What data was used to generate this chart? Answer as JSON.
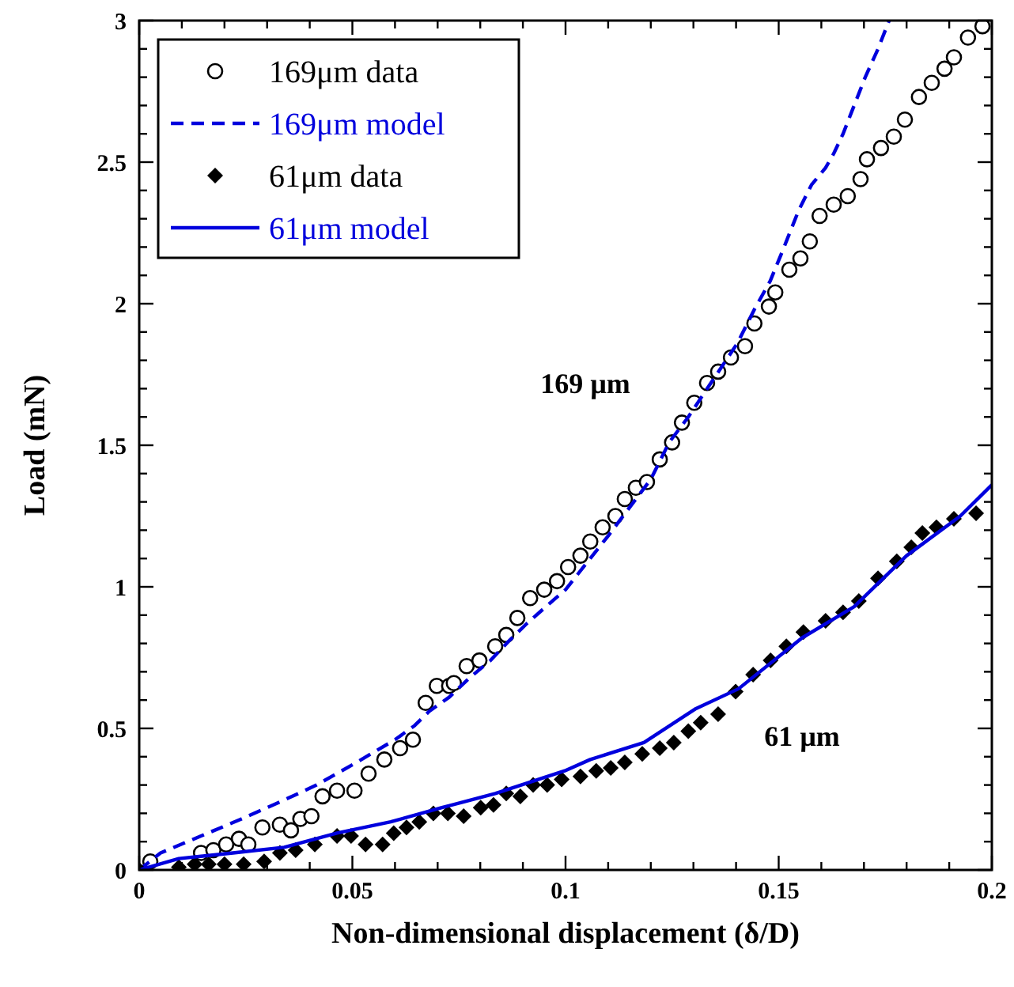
{
  "chart_data": {
    "type": "scatter",
    "xlabel": "Non-dimensional displacement (δ/D)",
    "ylabel": "Load (mN)",
    "xlim": [
      0,
      0.2
    ],
    "ylim": [
      0,
      3
    ],
    "xticks": [
      0,
      {
        "value": 0.01,
        "label": null
      },
      {
        "value": 0.02,
        "label": null
      },
      {
        "value": 0.03,
        "label": null
      },
      {
        "value": 0.04,
        "label": null
      },
      0.05,
      {
        "value": 0.06,
        "label": null
      },
      {
        "value": 0.07,
        "label": null
      },
      {
        "value": 0.08,
        "label": null
      },
      {
        "value": 0.09,
        "label": null
      },
      0.1,
      {
        "value": 0.11,
        "label": null
      },
      {
        "value": 0.12,
        "label": null
      },
      {
        "value": 0.13,
        "label": null
      },
      {
        "value": 0.14,
        "label": null
      },
      0.15,
      {
        "value": 0.16,
        "label": null
      },
      {
        "value": 0.17,
        "label": null
      },
      {
        "value": 0.18,
        "label": null
      },
      {
        "value": 0.19,
        "label": null
      },
      0.2
    ],
    "yticks": [
      0,
      {
        "value": 0.1,
        "label": null
      },
      {
        "value": 0.2,
        "label": null
      },
      {
        "value": 0.3,
        "label": null
      },
      {
        "value": 0.4,
        "label": null
      },
      0.5,
      {
        "value": 0.6,
        "label": null
      },
      {
        "value": 0.7,
        "label": null
      },
      {
        "value": 0.8,
        "label": null
      },
      {
        "value": 0.9,
        "label": null
      },
      1,
      {
        "value": 1.1,
        "label": null
      },
      {
        "value": 1.2,
        "label": null
      },
      {
        "value": 1.3,
        "label": null
      },
      {
        "value": 1.4,
        "label": null
      },
      1.5,
      {
        "value": 1.6,
        "label": null
      },
      {
        "value": 1.7,
        "label": null
      },
      {
        "value": 1.8,
        "label": null
      },
      {
        "value": 1.9,
        "label": null
      },
      2,
      {
        "value": 2.1,
        "label": null
      },
      {
        "value": 2.2,
        "label": null
      },
      {
        "value": 2.3,
        "label": null
      },
      {
        "value": 2.4,
        "label": null
      },
      2.5,
      {
        "value": 2.6,
        "label": null
      },
      {
        "value": 2.7,
        "label": null
      },
      {
        "value": 2.8,
        "label": null
      },
      {
        "value": 2.9,
        "label": null
      },
      3
    ],
    "grid": false,
    "legend": "top left",
    "annotations": [
      "169 µm",
      "61 µm"
    ],
    "series": [
      {
        "name": "169μm data",
        "marker": "circle",
        "color": "#000000",
        "x": [
          0.0026,
          0.0145,
          0.0174,
          0.0204,
          0.0234,
          0.0256,
          0.0289,
          0.033,
          0.0356,
          0.0378,
          0.0404,
          0.043,
          0.0464,
          0.0505,
          0.0538,
          0.0575,
          0.0612,
          0.0642,
          0.0672,
          0.0698,
          0.0727,
          0.0738,
          0.0768,
          0.0798,
          0.0835,
          0.0861,
          0.0887,
          0.0917,
          0.095,
          0.098,
          0.1006,
          0.1035,
          0.1058,
          0.1087,
          0.1117,
          0.1139,
          0.1165,
          0.1191,
          0.1221,
          0.125,
          0.1273,
          0.1302,
          0.1332,
          0.1358,
          0.1388,
          0.1421,
          0.1443,
          0.1477,
          0.1492,
          0.1525,
          0.1551,
          0.1573,
          0.1596,
          0.1629,
          0.1662,
          0.1692,
          0.1707,
          0.174,
          0.177,
          0.1796,
          0.1829,
          0.1859,
          0.1889,
          0.1911,
          0.1944,
          0.1978
        ],
        "values": [
          0.03,
          0.06,
          0.07,
          0.09,
          0.11,
          0.09,
          0.15,
          0.16,
          0.14,
          0.18,
          0.19,
          0.26,
          0.28,
          0.28,
          0.34,
          0.39,
          0.43,
          0.46,
          0.59,
          0.65,
          0.65,
          0.66,
          0.72,
          0.74,
          0.79,
          0.83,
          0.89,
          0.96,
          0.99,
          1.02,
          1.07,
          1.11,
          1.16,
          1.21,
          1.25,
          1.31,
          1.35,
          1.37,
          1.45,
          1.51,
          1.58,
          1.65,
          1.72,
          1.76,
          1.81,
          1.85,
          1.93,
          1.99,
          2.04,
          2.12,
          2.16,
          2.22,
          2.31,
          2.35,
          2.38,
          2.44,
          2.51,
          2.55,
          2.59,
          2.65,
          2.73,
          2.78,
          2.83,
          2.87,
          2.94,
          2.98
        ]
      },
      {
        "name": "169μm model",
        "type": "line",
        "line_style": "dashed",
        "color": "#0000dd",
        "x": [
          0,
          0.005,
          0.0145,
          0.024,
          0.033,
          0.0416,
          0.051,
          0.06,
          0.0646,
          0.068,
          0.0727,
          0.0776,
          0.0824,
          0.0868,
          0.0909,
          0.0954,
          0.1,
          0.11,
          0.12,
          0.1243,
          0.1288,
          0.1403,
          0.1443,
          0.148,
          0.151,
          0.1547,
          0.1577,
          0.161,
          0.1629,
          0.1651,
          0.1677,
          0.1703,
          0.1733,
          0.1759
        ],
        "values": [
          0,
          0.06,
          0.12,
          0.18,
          0.24,
          0.3,
          0.38,
          0.46,
          0.51,
          0.56,
          0.61,
          0.68,
          0.74,
          0.81,
          0.87,
          0.93,
          0.99,
          1.18,
          1.38,
          1.51,
          1.6,
          1.86,
          1.98,
          2.08,
          2.19,
          2.33,
          2.42,
          2.48,
          2.53,
          2.6,
          2.7,
          2.8,
          2.9,
          3
        ]
      },
      {
        "name": "61μm data",
        "marker": "diamond",
        "color": "#000000",
        "x": [
          0,
          0.0093,
          0.013,
          0.0163,
          0.02,
          0.0245,
          0.0293,
          0.033,
          0.0367,
          0.0412,
          0.0464,
          0.0497,
          0.0531,
          0.0571,
          0.0597,
          0.0627,
          0.0657,
          0.069,
          0.0724,
          0.0761,
          0.0801,
          0.0831,
          0.0861,
          0.0894,
          0.0924,
          0.0957,
          0.0991,
          0.1035,
          0.1072,
          0.1106,
          0.1139,
          0.118,
          0.1221,
          0.1254,
          0.1288,
          0.1317,
          0.1358,
          0.1399,
          0.144,
          0.1481,
          0.1518,
          0.1558,
          0.161,
          0.1651,
          0.1688,
          0.1733,
          0.1777,
          0.1811,
          0.1837,
          0.187,
          0.1911,
          0.1963
        ],
        "values": [
          0,
          0.01,
          0.02,
          0.02,
          0.02,
          0.02,
          0.03,
          0.06,
          0.07,
          0.09,
          0.12,
          0.12,
          0.09,
          0.09,
          0.13,
          0.15,
          0.17,
          0.2,
          0.2,
          0.19,
          0.22,
          0.23,
          0.27,
          0.26,
          0.3,
          0.3,
          0.32,
          0.33,
          0.35,
          0.36,
          0.38,
          0.41,
          0.43,
          0.45,
          0.49,
          0.52,
          0.55,
          0.63,
          0.69,
          0.74,
          0.79,
          0.84,
          0.88,
          0.91,
          0.95,
          1.03,
          1.09,
          1.14,
          1.19,
          1.21,
          1.24,
          1.26
        ]
      },
      {
        "name": "61μm model",
        "type": "line",
        "line_style": "solid",
        "color": "#0000dd",
        "x": [
          0,
          0.0093,
          0.022,
          0.034,
          0.0464,
          0.059,
          0.071,
          0.0835,
          0.0998,
          0.1058,
          0.1184,
          0.1306,
          0.1406,
          0.1555,
          0.1677,
          0.18,
          0.1926,
          0.2
        ],
        "values": [
          0,
          0.04,
          0.06,
          0.08,
          0.13,
          0.17,
          0.22,
          0.27,
          0.35,
          0.39,
          0.45,
          0.57,
          0.64,
          0.82,
          0.93,
          1.11,
          1.25,
          1.36
        ]
      }
    ]
  }
}
